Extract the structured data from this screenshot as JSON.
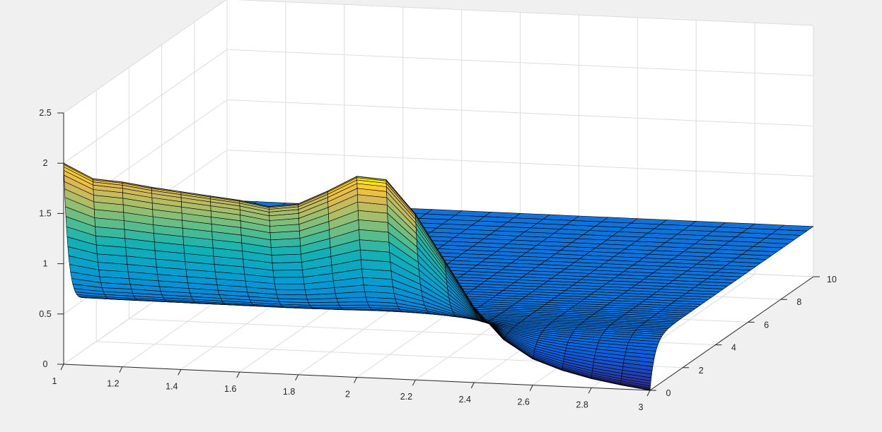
{
  "figure": {
    "background": "#f0f0f0",
    "axes_background": "#ffffff"
  },
  "chart_data": {
    "type": "surface",
    "title": "",
    "xlabel": "",
    "ylabel": "",
    "zlabel": "",
    "colormap": "parula",
    "edge_color": "#000000",
    "grid": true,
    "x_axis": {
      "lim": [
        1,
        3
      ],
      "ticks": [
        1,
        1.2,
        1.4,
        1.6,
        1.8,
        2,
        2.2,
        2.4,
        2.6,
        2.8,
        3
      ],
      "tick_labels": [
        "1",
        "1.2",
        "1.4",
        "1.6",
        "1.8",
        "2",
        "2.2",
        "2.4",
        "2.6",
        "2.8",
        "3"
      ]
    },
    "y_axis": {
      "lim": [
        0,
        10
      ],
      "ticks": [
        0,
        2,
        4,
        6,
        8,
        10
      ],
      "tick_labels": [
        "0",
        "2",
        "4",
        "6",
        "8",
        "10"
      ]
    },
    "z_axis": {
      "lim": [
        0,
        2.5
      ],
      "ticks": [
        0,
        0.5,
        1,
        1.5,
        2,
        2.5
      ],
      "tick_labels": [
        "0",
        "0.5",
        "1",
        "1.5",
        "2",
        "2.5"
      ]
    },
    "x_grid": [
      1,
      1.1,
      1.2,
      1.3,
      1.4,
      1.5,
      1.6,
      1.7,
      1.8,
      1.9,
      2,
      2.1,
      2.2,
      2.3,
      2.4,
      2.5,
      2.6,
      2.7,
      2.8,
      2.9,
      3
    ],
    "t0_profile": [
      2,
      1.86,
      1.84,
      1.8,
      1.77,
      1.74,
      1.71,
      1.66,
      1.7,
      1.84,
      2,
      1.98,
      1.65,
      1.2,
      0.75,
      0.44,
      0.26,
      0.16,
      0.09,
      0.04,
      0
    ],
    "steady_level": 0.5,
    "y_max": 10
  }
}
